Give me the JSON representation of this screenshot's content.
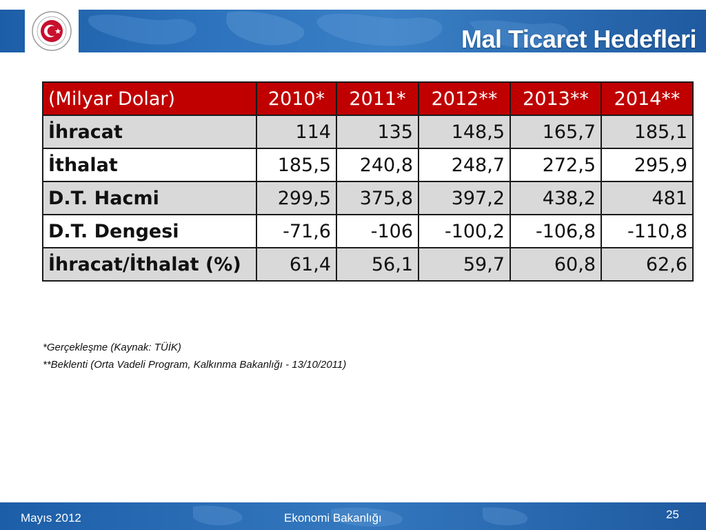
{
  "header": {
    "title": "Mal Ticaret Hedefleri",
    "logo_text": "REPUBLIC OF TURKEY · MINISTRY OF ECONOMY"
  },
  "table": {
    "columns": [
      "(Milyar Dolar)",
      "2010*",
      "2011*",
      "2012**",
      "2013**",
      "2014**"
    ],
    "rows": [
      {
        "label": "İhracat",
        "values": [
          "114",
          "135",
          "148,5",
          "165,7",
          "185,1"
        ]
      },
      {
        "label": "İthalat",
        "values": [
          "185,5",
          "240,8",
          "248,7",
          "272,5",
          "295,9"
        ]
      },
      {
        "label": "D.T. Hacmi",
        "values": [
          "299,5",
          "375,8",
          "397,2",
          "438,2",
          "481"
        ]
      },
      {
        "label": "D.T. Dengesi",
        "values": [
          "-71,6",
          "-106",
          "-100,2",
          "-106,8",
          "-110,8"
        ]
      },
      {
        "label": "İhracat/İthalat (%)",
        "values": [
          "61,4",
          "56,1",
          "59,7",
          "60,8",
          "62,6"
        ]
      }
    ]
  },
  "notes": [
    "*Gerçekleşme (Kaynak: TÜİK)",
    "**Beklenti (Orta Vadeli Program, Kalkınma Bakanlığı - 13/10/2011)"
  ],
  "footer": {
    "date": "Mayıs 2012",
    "ministry": "Ekonomi Bakanlığı",
    "page": "25"
  },
  "colors": {
    "header_blue": "#2d73bd",
    "table_header_red": "#c00000",
    "row_shade": "#d9d9d9"
  }
}
